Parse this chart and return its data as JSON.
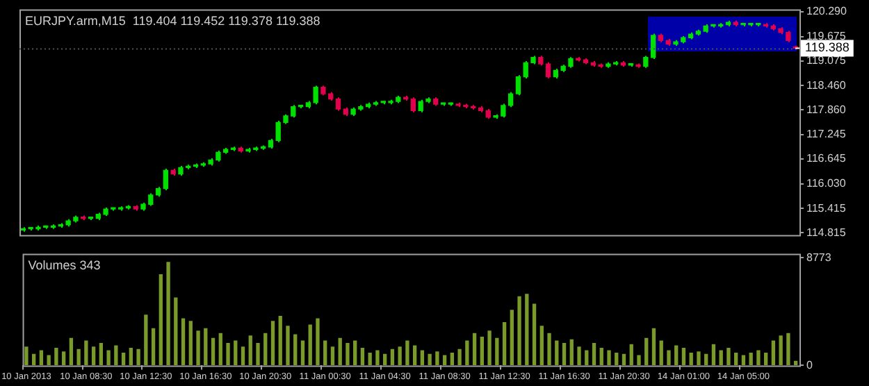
{
  "chart_data": [
    {
      "type": "candlestick",
      "title": "EURJPY.arm,M15  119.404 119.452 119.378 119.388",
      "categories": [
        null,
        null,
        null,
        null,
        null,
        null,
        null,
        null,
        null,
        null,
        null,
        null,
        null,
        null,
        null,
        null,
        null,
        null,
        null,
        null,
        null,
        null,
        null,
        null,
        null,
        null,
        null,
        null,
        null,
        null,
        null,
        null,
        null,
        null,
        null,
        null,
        null,
        null,
        null,
        null,
        null,
        null,
        null,
        null,
        null,
        null,
        null,
        null,
        null,
        null,
        null,
        null,
        null,
        null,
        null,
        null,
        null,
        null,
        null,
        null,
        null,
        null,
        null,
        null,
        null,
        null,
        null,
        null,
        null,
        null,
        null,
        null,
        null,
        null,
        null,
        null,
        null,
        null,
        null,
        null,
        null,
        null,
        null,
        null,
        null,
        null,
        null,
        null,
        null,
        null,
        null,
        null,
        null,
        null,
        null,
        null,
        null,
        null,
        null,
        null,
        null,
        null,
        null,
        null
      ],
      "ohlc": [
        [
          114.88,
          114.95,
          114.84,
          114.91
        ],
        [
          114.91,
          114.95,
          114.87,
          114.91
        ],
        [
          114.91,
          114.99,
          114.87,
          114.95
        ],
        [
          114.95,
          114.99,
          114.91,
          114.95
        ],
        [
          114.95,
          115.02,
          114.91,
          114.98
        ],
        [
          114.98,
          115.05,
          114.94,
          115.01
        ],
        [
          115.01,
          115.15,
          114.97,
          115.11
        ],
        [
          115.11,
          115.24,
          115.07,
          115.2
        ],
        [
          115.2,
          115.24,
          115.13,
          115.17
        ],
        [
          115.17,
          115.21,
          115.13,
          115.17
        ],
        [
          115.17,
          115.31,
          115.13,
          115.27
        ],
        [
          115.27,
          115.44,
          115.23,
          115.4
        ],
        [
          115.4,
          115.44,
          115.36,
          115.4
        ],
        [
          115.4,
          115.47,
          115.36,
          115.43
        ],
        [
          115.43,
          115.5,
          115.39,
          115.46
        ],
        [
          115.46,
          115.5,
          115.36,
          115.4
        ],
        [
          115.4,
          115.56,
          115.36,
          115.52
        ],
        [
          115.52,
          115.79,
          115.48,
          115.75
        ],
        [
          115.75,
          115.95,
          115.71,
          115.91
        ],
        [
          115.91,
          116.4,
          115.87,
          116.36
        ],
        [
          116.36,
          116.4,
          116.23,
          116.27
        ],
        [
          116.27,
          116.47,
          116.23,
          116.43
        ],
        [
          116.43,
          116.5,
          116.39,
          116.46
        ],
        [
          116.46,
          116.53,
          116.42,
          116.49
        ],
        [
          116.49,
          116.56,
          116.45,
          116.52
        ],
        [
          116.52,
          116.66,
          116.48,
          116.62
        ],
        [
          116.62,
          116.85,
          116.58,
          116.81
        ],
        [
          116.81,
          116.92,
          116.77,
          116.88
        ],
        [
          116.88,
          116.95,
          116.84,
          116.91
        ],
        [
          116.91,
          116.95,
          116.8,
          116.84
        ],
        [
          116.84,
          116.92,
          116.8,
          116.88
        ],
        [
          116.88,
          116.95,
          116.84,
          116.91
        ],
        [
          116.91,
          116.98,
          116.87,
          116.94
        ],
        [
          116.94,
          117.14,
          116.9,
          117.1
        ],
        [
          117.1,
          117.59,
          117.06,
          117.55
        ],
        [
          117.55,
          117.75,
          117.51,
          117.71
        ],
        [
          117.71,
          117.98,
          117.67,
          117.94
        ],
        [
          117.94,
          117.98,
          117.9,
          117.94
        ],
        [
          117.94,
          118.08,
          117.9,
          118.04
        ],
        [
          118.04,
          118.46,
          118.0,
          118.42
        ],
        [
          118.42,
          118.46,
          118.22,
          118.26
        ],
        [
          118.26,
          118.3,
          118.09,
          118.13
        ],
        [
          118.13,
          118.17,
          117.84,
          117.88
        ],
        [
          117.88,
          117.92,
          117.71,
          117.75
        ],
        [
          117.75,
          117.92,
          117.71,
          117.88
        ],
        [
          117.88,
          117.98,
          117.84,
          117.94
        ],
        [
          117.94,
          118.04,
          117.9,
          118.0
        ],
        [
          118.0,
          118.08,
          117.96,
          118.04
        ],
        [
          118.04,
          118.08,
          118.0,
          118.04
        ],
        [
          118.04,
          118.11,
          118.0,
          118.07
        ],
        [
          118.07,
          118.21,
          118.03,
          118.17
        ],
        [
          118.17,
          118.21,
          118.09,
          118.13
        ],
        [
          118.13,
          118.17,
          117.8,
          117.84
        ],
        [
          117.84,
          118.11,
          117.8,
          118.07
        ],
        [
          118.07,
          118.17,
          118.03,
          118.13
        ],
        [
          118.13,
          118.17,
          117.96,
          118.0
        ],
        [
          118.0,
          118.04,
          117.96,
          118.0
        ],
        [
          118.0,
          118.04,
          117.96,
          118.0
        ],
        [
          118.0,
          118.04,
          117.93,
          117.97
        ],
        [
          117.97,
          118.01,
          117.9,
          117.94
        ],
        [
          117.94,
          117.98,
          117.87,
          117.91
        ],
        [
          117.91,
          117.95,
          117.8,
          117.84
        ],
        [
          117.84,
          117.88,
          117.64,
          117.68
        ],
        [
          117.68,
          117.75,
          117.64,
          117.71
        ],
        [
          117.71,
          118.01,
          117.67,
          117.97
        ],
        [
          117.97,
          118.3,
          117.93,
          118.26
        ],
        [
          118.26,
          118.72,
          118.22,
          118.68
        ],
        [
          118.68,
          119.07,
          118.64,
          119.03
        ],
        [
          119.03,
          119.2,
          118.99,
          119.16
        ],
        [
          119.16,
          119.2,
          118.96,
          119.0
        ],
        [
          119.0,
          119.04,
          118.64,
          118.68
        ],
        [
          118.68,
          118.88,
          118.64,
          118.84
        ],
        [
          118.84,
          118.98,
          118.8,
          118.94
        ],
        [
          118.94,
          119.17,
          118.9,
          119.13
        ],
        [
          119.13,
          119.17,
          119.06,
          119.1
        ],
        [
          119.1,
          119.14,
          118.99,
          119.03
        ],
        [
          119.03,
          119.07,
          118.93,
          118.97
        ],
        [
          118.97,
          119.01,
          118.9,
          118.94
        ],
        [
          118.94,
          119.04,
          118.9,
          119.0
        ],
        [
          119.0,
          119.07,
          118.96,
          119.03
        ],
        [
          119.03,
          119.07,
          118.93,
          118.97
        ],
        [
          118.97,
          119.01,
          118.93,
          118.97
        ],
        [
          118.97,
          119.01,
          118.9,
          118.94
        ],
        [
          118.94,
          119.2,
          118.9,
          119.16
        ],
        [
          119.16,
          119.75,
          119.12,
          119.71
        ],
        [
          119.71,
          119.75,
          119.54,
          119.58
        ],
        [
          119.58,
          119.62,
          119.45,
          119.49
        ],
        [
          119.49,
          119.59,
          119.45,
          119.55
        ],
        [
          119.55,
          119.69,
          119.51,
          119.65
        ],
        [
          119.65,
          119.78,
          119.61,
          119.74
        ],
        [
          119.74,
          119.85,
          119.7,
          119.81
        ],
        [
          119.81,
          119.98,
          119.77,
          119.94
        ],
        [
          119.94,
          119.98,
          119.9,
          119.94
        ],
        [
          119.94,
          120.01,
          119.9,
          119.97
        ],
        [
          119.97,
          120.07,
          119.93,
          120.03
        ],
        [
          120.03,
          120.07,
          119.93,
          119.97
        ],
        [
          119.97,
          120.01,
          119.93,
          119.97
        ],
        [
          119.97,
          120.01,
          119.93,
          119.97
        ],
        [
          119.97,
          120.01,
          119.93,
          119.97
        ],
        [
          119.97,
          120.01,
          119.9,
          119.94
        ],
        [
          119.94,
          119.98,
          119.83,
          119.87
        ],
        [
          119.87,
          119.91,
          119.74,
          119.78
        ],
        [
          119.78,
          119.82,
          119.54,
          119.58
        ],
        [
          119.404,
          119.452,
          119.378,
          119.388
        ]
      ],
      "ylim": [
        114.76,
        120.35
      ],
      "yticks": [
        {
          "value": 120.29,
          "label": "120.290"
        },
        119.675,
        119.075,
        {
          "value": 118.46,
          "label": "118.460"
        },
        {
          "value": 117.86,
          "label": "117.860"
        },
        117.245,
        116.645,
        {
          "value": 116.03,
          "label": "116.030"
        },
        115.415,
        114.815
      ],
      "ref_lines": [
        {
          "axis": "y",
          "value": 119.388,
          "label": "119.388",
          "color": "#505050",
          "line_style": "dotted"
        }
      ],
      "tick_labels": "y",
      "grid": false
    },
    {
      "type": "bar",
      "title": "Volumes 343",
      "categories": [
        "10 Jan 2013",
        null,
        null,
        null,
        null,
        null,
        null,
        null,
        "10 Jan 08:30",
        null,
        null,
        null,
        null,
        null,
        null,
        null,
        "10 Jan 12:30",
        null,
        null,
        null,
        null,
        null,
        null,
        null,
        "10 Jan 16:30",
        null,
        null,
        null,
        null,
        null,
        null,
        null,
        "10 Jan 20:30",
        null,
        null,
        null,
        null,
        null,
        null,
        null,
        "11 Jan 00:30",
        null,
        null,
        null,
        null,
        null,
        null,
        null,
        "11 Jan 04:30",
        null,
        null,
        null,
        null,
        null,
        null,
        null,
        "11 Jan 08:30",
        null,
        null,
        null,
        null,
        null,
        null,
        null,
        "11 Jan 12:30",
        null,
        null,
        null,
        null,
        null,
        null,
        null,
        "11 Jan 16:30",
        null,
        null,
        null,
        null,
        null,
        null,
        null,
        "11 Jan 20:30",
        null,
        null,
        null,
        null,
        null,
        null,
        null,
        "14 Jan 01:00",
        null,
        null,
        null,
        null,
        null,
        null,
        null,
        "14 Jan 05:00",
        null,
        null,
        null,
        null,
        null,
        null,
        null
      ],
      "values": [
        1500,
        900,
        1200,
        800,
        1400,
        1100,
        2200,
        1300,
        2000,
        1500,
        1800,
        1200,
        1600,
        1000,
        1400,
        1300,
        4100,
        3000,
        7400,
        8400,
        5500,
        3800,
        3600,
        2800,
        3000,
        2200,
        2600,
        1800,
        2000,
        1500,
        2400,
        1800,
        2600,
        3600,
        4000,
        3200,
        2500,
        2000,
        3300,
        3800,
        2000,
        1500,
        2200,
        1800,
        2000,
        1400,
        1000,
        1200,
        900,
        1300,
        1500,
        2000,
        1600,
        1200,
        900,
        1100,
        800,
        1000,
        1300,
        2000,
        2600,
        2300,
        2800,
        2200,
        3500,
        4500,
        5600,
        5800,
        5000,
        3200,
        2600,
        2000,
        1800,
        2100,
        1500,
        1200,
        1800,
        1400,
        1200,
        1000,
        900,
        1700,
        800,
        2200,
        3000,
        2000,
        1200,
        1600,
        1400,
        1000,
        1100,
        900,
        1700,
        1200,
        1400,
        1000,
        800,
        1000,
        1200,
        1000,
        2000,
        2400,
        2600,
        343
      ],
      "color": "#7a9a2a",
      "ylim": [
        0,
        9100
      ],
      "yticks": [
        0,
        8773
      ],
      "grid": false
    }
  ]
}
